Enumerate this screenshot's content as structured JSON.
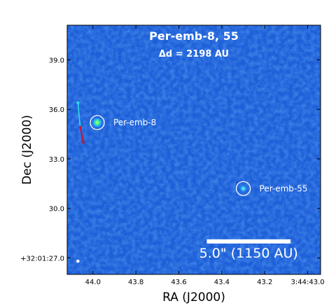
{
  "chart_data": {
    "type": "image",
    "title": "Per-emb-8, 55",
    "subtitle": "Δd = 2198 AU",
    "xlabel": "RA (J2000)",
    "ylabel": "Dec (J2000)",
    "x_ticks": [
      {
        "value": 44.0,
        "label": "44.0"
      },
      {
        "value": 43.8,
        "label": "43.8"
      },
      {
        "value": 43.6,
        "label": "43.6"
      },
      {
        "value": 43.4,
        "label": "43.4"
      },
      {
        "value": 43.2,
        "label": "43.2"
      },
      {
        "value": 43.0,
        "label": "3:44:43.0"
      }
    ],
    "y_ticks": [
      {
        "value": 39.0,
        "label": "39.0"
      },
      {
        "value": 36.0,
        "label": "36.0"
      },
      {
        "value": 33.0,
        "label": "33.0"
      },
      {
        "value": 30.0,
        "label": "30.0"
      },
      {
        "value": 27.0,
        "label": "+32:01:27.0"
      }
    ],
    "xlim": [
      44.12,
      42.94
    ],
    "ylim": [
      26.0,
      41.1
    ],
    "sources": [
      {
        "name": "Per-emb-8",
        "ra": 43.98,
        "dec": 35.2
      },
      {
        "name": "Per-emb-55",
        "ra": 43.3,
        "dec": 31.2
      }
    ],
    "outflow": {
      "blue": {
        "ra": [
          44.07,
          44.06
        ],
        "dec": [
          36.4,
          35.0
        ]
      },
      "red": {
        "ra": [
          44.06,
          44.045
        ],
        "dec": [
          35.0,
          34.0
        ]
      }
    },
    "beam": {
      "ra": 44.07,
      "dec": 26.8
    },
    "scale_bar": {
      "label": "5.0\" (1150 AU)",
      "ra_start": 43.47,
      "ra_end": 43.08,
      "dec": 28.0
    },
    "colors": {
      "background": "#1e5fd8",
      "marker": "#ffffff",
      "blue_lobe": "#2fe0e8",
      "red_lobe": "#c8102e"
    }
  }
}
